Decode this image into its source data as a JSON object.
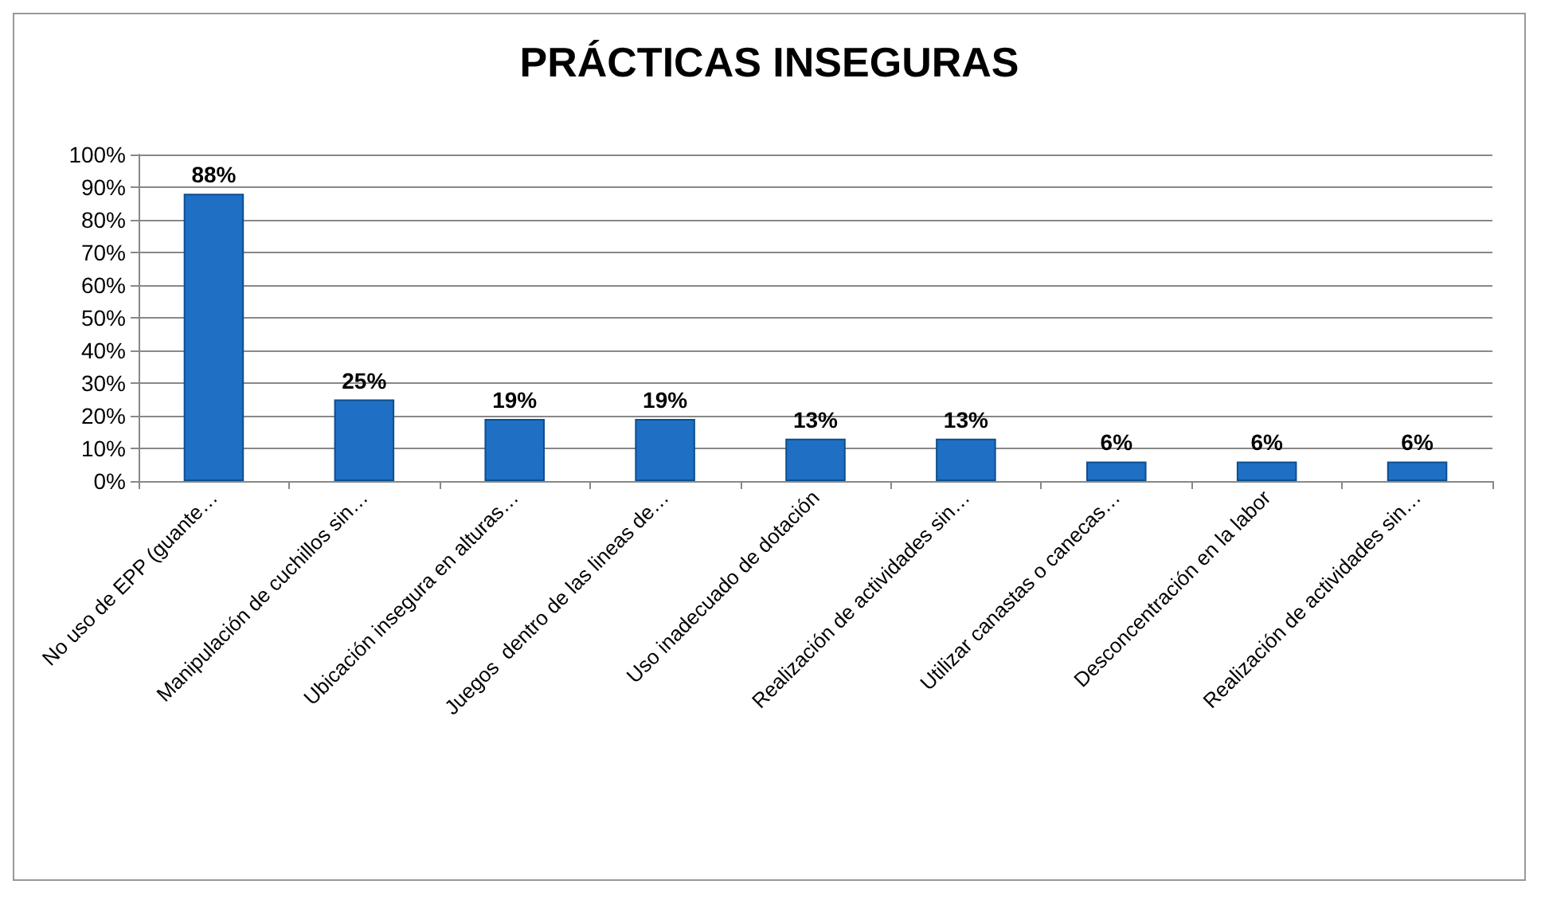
{
  "chart_data": {
    "type": "bar",
    "title": "PRÁCTICAS INSEGURAS",
    "categories": [
      "No uso de EPP (guante…",
      "Manipulación de cuchillos sin…",
      "Ubicación insegura en alturas…",
      "Juegos  dentro de las lineas de…",
      "Uso inadecuado de dotación",
      "Realización de actividades sin…",
      "Utilizar canastas o canecas…",
      "Desconcentración en la labor",
      "Realización de actividades sin…"
    ],
    "values": [
      88,
      25,
      19,
      19,
      13,
      13,
      6,
      6,
      6
    ],
    "value_labels": [
      "88%",
      "25%",
      "19%",
      "19%",
      "13%",
      "13%",
      "6%",
      "6%",
      "6%"
    ],
    "color": "#1f6fc4",
    "ylim": [
      0,
      100
    ],
    "yticks": [
      {
        "value": 0,
        "label": "0%"
      },
      {
        "value": 10,
        "label": "10%"
      },
      {
        "value": 20,
        "label": "20%"
      },
      {
        "value": 30,
        "label": "30%"
      },
      {
        "value": 40,
        "label": "40%"
      },
      {
        "value": 50,
        "label": "50%"
      },
      {
        "value": 60,
        "label": "60%"
      },
      {
        "value": 70,
        "label": "70%"
      },
      {
        "value": 80,
        "label": "80%"
      },
      {
        "value": 90,
        "label": "90%"
      },
      {
        "value": 100,
        "label": "100%"
      }
    ],
    "grid": "y"
  }
}
